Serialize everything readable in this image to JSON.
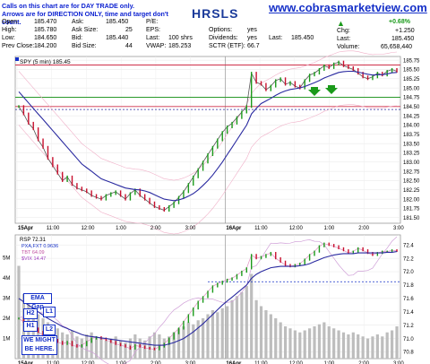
{
  "header": {
    "note_line1": "Calls on this chart are for DAY TRADE only.",
    "note_line2": "Arrows are for DIRECTION ONLY, time and target don't count.",
    "symbol": "HRSLS",
    "site": "www.cobrasmarketview.com"
  },
  "quote": {
    "open_label": "Open:",
    "open": "185.470",
    "high_label": "High:",
    "high": "185.780",
    "low_label": "Low:",
    "low": "184.650",
    "prev_label": "Prev Close:",
    "prev": "184.200",
    "ask_label": "Ask:",
    "ask": "185.450",
    "asksize_label": "Ask Size:",
    "asksize": "25",
    "bid_label": "Bid:",
    "bid": "185.440",
    "bidsize_label": "Bid Size:",
    "bidsize": "44",
    "pe_label": "P/E:",
    "pe": "",
    "eps_label": "EPS:",
    "eps": "",
    "last_label": "Last:",
    "last": "100 shrs",
    "vwap_label": "VWAP:",
    "vwap": "185.253",
    "options_label": "Options:",
    "options": "yes",
    "dividends_label": "Dividends:",
    "dividends": "yes",
    "last2_label": "Last:",
    "last2": "185.450",
    "sctr_label": "SCTR (ETF):",
    "sctr": "66.7",
    "pct": "+0.68%",
    "chg_label": "Chg:",
    "chg": "+1.250",
    "last3_label": "Last:",
    "last3": "185.450",
    "volume_label": "Volume:",
    "volume": "65,658,440"
  },
  "colors": {
    "up": "#1a9a1a",
    "down": "#c8102e",
    "ema": "#2a2aa0",
    "resistance": "#d0304a",
    "support": "#2a9a2a",
    "blue": "#1530c8"
  },
  "chart_data": [
    {
      "type": "line",
      "title": "SPY (5 min) 185.45",
      "y_ticks": [
        "185.75",
        "185.50",
        "185.25",
        "185.00",
        "184.75",
        "184.50",
        "184.25",
        "184.00",
        "183.75",
        "183.50",
        "183.25",
        "183.00",
        "182.75",
        "182.50",
        "182.25",
        "182.00",
        "181.75",
        "181.50"
      ],
      "x_ticks": [
        "15Apr",
        "11:00",
        "12:00",
        "1:00",
        "2:00",
        "3:00",
        "16Apr",
        "11:00",
        "12:00",
        "1:00",
        "2:00",
        "3:00"
      ],
      "ylim": [
        181.35,
        185.85
      ],
      "levels": {
        "resistance": 185.62,
        "support": 184.75,
        "red_line": 184.5,
        "dashed": 184.42
      },
      "close": [
        184.5,
        184.3,
        184.05,
        183.9,
        183.6,
        183.4,
        183.1,
        182.9,
        182.7,
        182.5,
        182.6,
        182.4,
        182.3,
        182.25,
        182.2,
        182.1,
        182.05,
        182.0,
        182.1,
        182.15,
        182.2,
        182.1,
        182.0,
        182.15,
        182.25,
        182.1,
        182.0,
        181.9,
        181.8,
        181.75,
        181.7,
        181.8,
        181.9,
        182.05,
        182.2,
        182.4,
        182.6,
        182.8,
        183.0,
        183.2,
        183.4,
        183.6,
        183.8,
        183.95,
        184.05,
        184.2,
        184.35,
        184.5,
        185.4,
        185.15,
        185.1,
        184.95,
        185.05,
        185.2,
        185.25,
        185.1,
        185.15,
        185.05,
        185.0,
        185.2,
        185.35,
        185.4,
        185.5,
        185.6,
        185.55,
        185.65,
        185.7,
        185.6,
        185.55,
        185.5,
        185.4,
        185.3,
        185.25,
        185.3,
        185.4,
        185.35,
        185.45,
        185.5,
        185.45
      ],
      "ema": [
        184.9,
        184.75,
        184.6,
        184.45,
        184.3,
        184.15,
        184.0,
        183.85,
        183.7,
        183.55,
        183.4,
        183.25,
        183.1,
        182.95,
        182.85,
        182.75,
        182.65,
        182.55,
        182.5,
        182.45,
        182.4,
        182.35,
        182.3,
        182.28,
        182.26,
        182.25,
        182.22,
        182.18,
        182.12,
        182.06,
        182.0,
        181.98,
        181.96,
        181.98,
        182.02,
        182.08,
        182.15,
        182.25,
        182.37,
        182.5,
        182.65,
        182.82,
        183.0,
        183.2,
        183.4,
        183.6,
        183.8,
        184.0,
        184.3,
        184.45,
        184.58,
        184.65,
        184.72,
        184.8,
        184.87,
        184.92,
        184.96,
        184.98,
        185.0,
        185.04,
        185.09,
        185.14,
        185.2,
        185.27,
        185.32,
        185.37,
        185.42,
        185.44,
        185.45,
        185.45,
        185.43,
        185.4,
        185.37,
        185.35,
        185.36,
        185.36,
        185.38,
        185.41,
        185.42
      ]
    },
    {
      "type": "line",
      "title": "RSP 72.31",
      "legend": [
        "PXA,FXT 0.9636",
        "TBT 64.09",
        "$VIX 14.47"
      ],
      "y_ticks": [
        "72.4",
        "72.2",
        "72.0",
        "71.8",
        "71.6",
        "71.4",
        "71.2",
        "71.0",
        "70.8"
      ],
      "vol_ticks": [
        "5M",
        "4M",
        "3M",
        "2M",
        "1M"
      ],
      "x_ticks": [
        "15Apr",
        "11:00",
        "12:00",
        "1:00",
        "2:00",
        "3:00",
        "16Apr",
        "11:00",
        "12:00",
        "1:00",
        "2:00",
        "3:00"
      ],
      "ylim": [
        70.7,
        72.55
      ],
      "dashed_level": 71.85,
      "close": [
        71.3,
        71.25,
        71.2,
        71.15,
        71.1,
        71.05,
        71.0,
        70.98,
        70.95,
        70.92,
        70.95,
        70.9,
        70.88,
        70.9,
        70.95,
        71.0,
        71.02,
        71.0,
        70.98,
        70.95,
        70.92,
        70.9,
        70.88,
        70.85,
        70.9,
        70.88,
        70.86,
        70.85,
        70.84,
        70.88,
        70.92,
        71.0,
        71.08,
        71.15,
        71.25,
        71.35,
        71.45,
        71.55,
        71.62,
        71.7,
        71.78,
        71.82,
        71.85,
        71.88,
        71.9,
        71.95,
        72.0,
        72.05,
        72.25,
        72.2,
        72.22,
        72.25,
        72.28,
        72.2,
        72.15,
        72.1,
        72.08,
        72.1,
        72.12,
        72.18,
        72.25,
        72.3,
        72.38,
        72.42,
        72.4,
        72.38,
        72.35,
        72.32,
        72.28,
        72.3,
        72.35,
        72.32,
        72.28,
        72.25,
        72.28,
        72.3,
        72.3,
        72.32,
        72.31
      ],
      "ema": [
        71.6,
        71.55,
        71.5,
        71.45,
        71.4,
        71.35,
        71.3,
        71.26,
        71.22,
        71.18,
        71.15,
        71.12,
        71.09,
        71.06,
        71.04,
        71.03,
        71.02,
        71.01,
        71.0,
        70.99,
        70.98,
        70.97,
        70.96,
        70.95,
        70.94,
        70.93,
        70.92,
        70.91,
        70.9,
        70.9,
        70.9,
        70.92,
        70.94,
        70.97,
        71.0,
        71.05,
        71.1,
        71.16,
        71.22,
        71.29,
        71.36,
        71.43,
        71.5,
        71.56,
        71.62,
        71.68,
        71.74,
        71.8,
        71.9,
        71.96,
        72.0,
        72.03,
        72.06,
        72.07,
        72.08,
        72.08,
        72.08,
        72.08,
        72.09,
        72.1,
        72.12,
        72.15,
        72.18,
        72.21,
        72.23,
        72.25,
        72.26,
        72.27,
        72.27,
        72.27,
        72.28,
        72.28,
        72.28,
        72.28,
        72.28,
        72.28,
        72.29,
        72.29,
        72.3
      ],
      "volume": [
        4.6,
        3.2,
        2.8,
        2.4,
        2.2,
        2.0,
        1.8,
        1.6,
        1.5,
        1.3,
        1.2,
        1.4,
        1.1,
        1.0,
        1.2,
        1.3,
        1.1,
        1.0,
        0.9,
        1.0,
        1.1,
        0.9,
        0.8,
        1.0,
        1.2,
        1.0,
        0.9,
        1.1,
        1.3,
        1.2,
        1.0,
        1.1,
        1.3,
        1.5,
        1.6,
        1.8,
        1.7,
        1.9,
        2.0,
        2.2,
        2.4,
        2.3,
        2.5,
        2.6,
        2.9,
        3.1,
        3.3,
        3.6,
        4.2,
        2.9,
        2.6,
        2.4,
        2.2,
        2.0,
        1.8,
        1.6,
        1.5,
        1.4,
        1.3,
        1.4,
        1.5,
        1.6,
        1.7,
        1.8,
        1.6,
        1.5,
        1.4,
        1.3,
        1.2,
        1.3,
        1.2,
        1.1,
        1.0,
        1.1,
        1.2,
        1.1,
        1.3,
        1.4,
        1.6
      ]
    }
  ],
  "annotations": {
    "ema_gap": "EMA Gap",
    "h2": "H2",
    "l1": "L1",
    "h1": "H1",
    "l2": "L2",
    "we_might_1": "WE MIGHT",
    "we_might_2": "BE HERE."
  }
}
